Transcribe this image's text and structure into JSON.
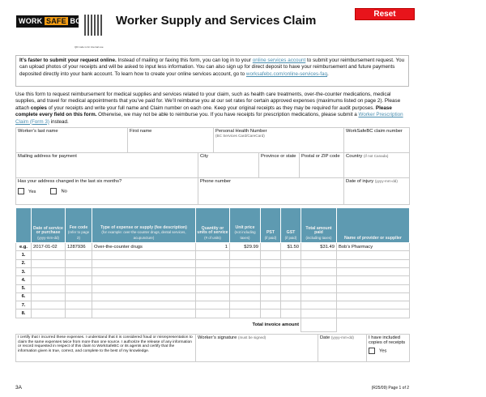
{
  "header": {
    "logo_work": "WORK",
    "logo_safe": "SAFE",
    "logo_bc": "BC",
    "qr_caption": "QR code is for internal use",
    "title": "Worker Supply and Services Claim",
    "reset": "Reset"
  },
  "info": {
    "bold": "It’s faster to submit your request online.",
    "t1": " Instead of mailing or faxing this form, you can log in to your ",
    "link1": "online services account",
    "t2": " to submit your reimbursement request. You can upload photos of your receipts and will be asked to input less information. You can also sign up for direct deposit to have your reimbursement and future payments deposited directly into your bank account. To learn how to create your online services account, go to ",
    "link2": "worksafebc.com/online-services-faq",
    "t3": "."
  },
  "intro": {
    "t1": "Use this form to request reimbursement for medical supplies and services related to your claim, such as health care treatments, over-the-counter medications, medical supplies, and travel for medical appointments that you’ve paid for. We’ll reimburse you at our set rates for certain approved expenses (maximums listed on page 2). Please attach ",
    "b1": "copies",
    "t2": " of your receipts and write your full name and Claim number on each one. Keep your original receipts as they may be required for audit purposes. ",
    "b2": "Please complete every field on this form.",
    "t3": " Otherwise, we may not be able to reimburse you. If you have receipts for prescription medications, please submit a ",
    "link": "Worker Prescription Claim (Form 3)",
    "t4": " instead."
  },
  "form": {
    "last_name": "Worker’s last name",
    "first_name": "First name",
    "phn": "Personal Health Number",
    "phn_sub": "(BC Services Card/CareCard)",
    "claim": "WorkSafeBC claim number",
    "address": "Mailing address for payment",
    "city": "City",
    "province": "Province or state",
    "postal": "Postal or ZIP code",
    "country": "Country",
    "country_sub": "(if not Canada)",
    "changed": "Has your address changed in the last six months?",
    "yes": "Yes",
    "no": "No",
    "phone": "Phone number",
    "injury": "Date of injury",
    "injury_sub": "(yyyy-mm-dd)"
  },
  "expenses": {
    "headers": [
      {
        "t": "Date of service or purchase",
        "s": "(yyyy-mm-dd)"
      },
      {
        "t": "Fee code",
        "s": "(refer to page 2)"
      },
      {
        "t": "Type of expense or supply (fee description)",
        "s": "(for example: over-the-counter drugs, dental services, acupuncture)"
      },
      {
        "t": "Quantity or units of service",
        "s": "(# of units)"
      },
      {
        "t": "Unit price",
        "s": "(not including taxes)"
      },
      {
        "t": "PST",
        "s": "(if paid)"
      },
      {
        "t": "GST",
        "s": "(if paid)"
      },
      {
        "t": "Total amount paid",
        "s": "(including taxes)"
      },
      {
        "t": "Name of provider or supplier",
        "s": ""
      }
    ],
    "example": {
      "label": "e.g.",
      "date": "2017-01-02",
      "fee": "1287936",
      "type": "Over-the-counter drugs",
      "qty": "1",
      "unit": "$29.99",
      "pst": "",
      "gst": "$1.50",
      "total": "$31.49",
      "provider": "Bob’s Pharmacy"
    },
    "rows": [
      "1.",
      "2.",
      "3.",
      "4.",
      "5.",
      "6.",
      "7.",
      "8."
    ],
    "total_label": "Total invoice amount"
  },
  "cert": {
    "text": "I certify that I incurred these expenses. I understand that it is considered fraud or misrepresentation to claim the same expenses twice from more than one source. I authorize the release of any information or record requested in respect of this claim to WorkSafeBC or its agents and certify that the information given is true, correct, and complete to the best of my knowledge.",
    "signature": "Worker’s signature",
    "signature_sub": "(must be signed)",
    "date": "Date",
    "date_sub": "(yyyy-mm-dd)",
    "receipts": "I have included copies of receipts",
    "yes": "Yes"
  },
  "footer": {
    "form": "3A",
    "page": "(R25/09) Page 1 of 2"
  }
}
